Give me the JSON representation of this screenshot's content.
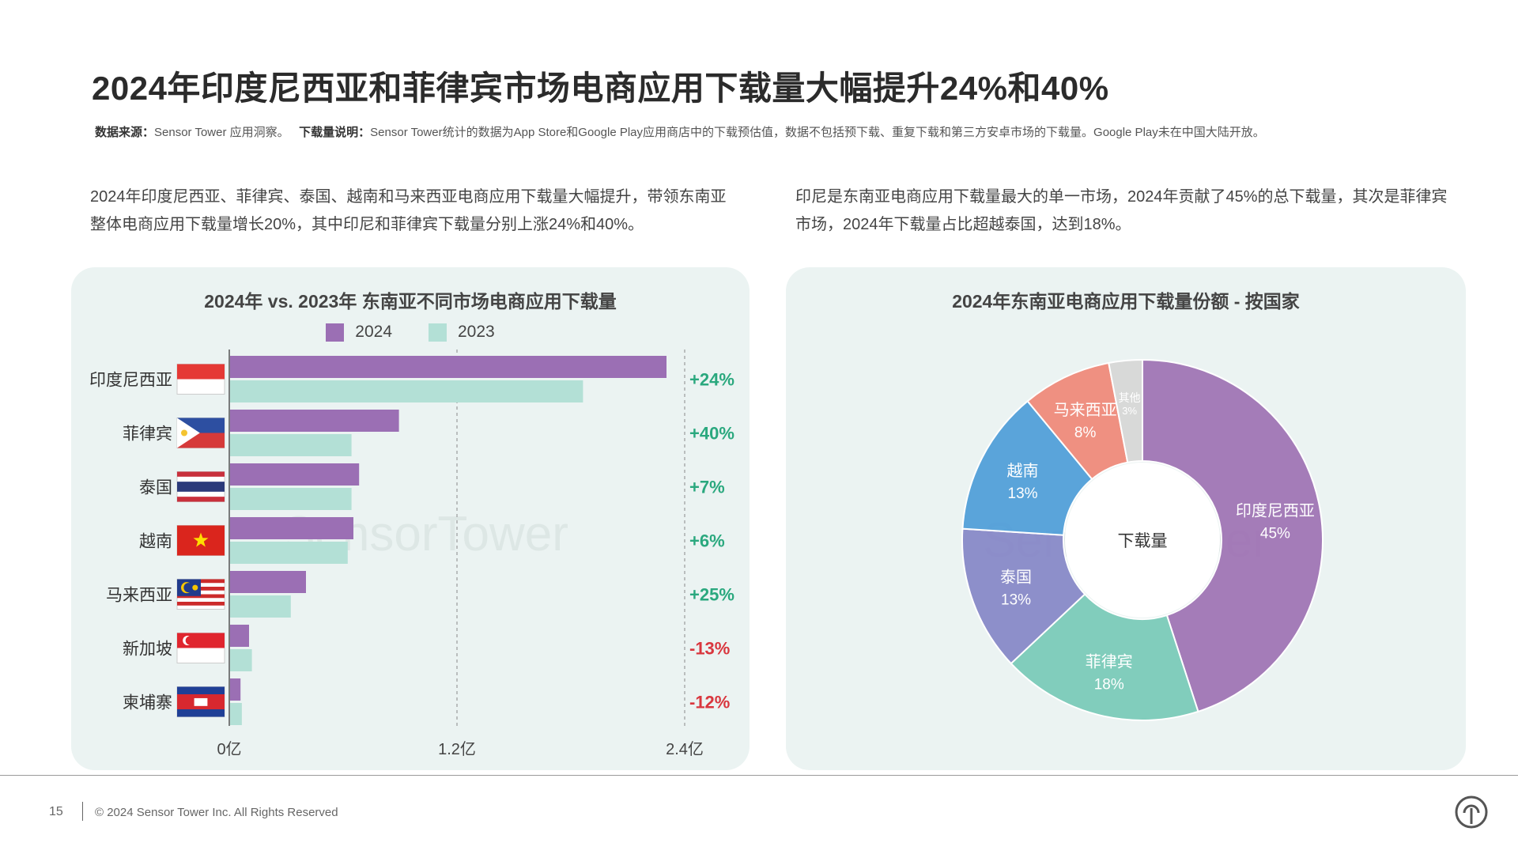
{
  "header": {
    "title": "2024年印度尼西亚和菲律宾市场电商应用下载量大幅提升24%和40%",
    "source_label": "数据来源：",
    "source_text": "Sensor Tower 应用洞察。",
    "note_label": "下载量说明：",
    "note_text": "Sensor Tower统计的数据为App Store和Google Play应用商店中的下载预估值，数据不包括预下载、重复下载和第三方安卓市场的下载量。Google Play未在中国大陆开放。"
  },
  "descriptions": {
    "left": "2024年印度尼西亚、菲律宾、泰国、越南和马来西亚电商应用下载量大幅提升，带领东南亚整体电商应用下载量增长20%，其中印尼和菲律宾下载量分别上涨24%和40%。",
    "right": "印尼是东南亚电商应用下载量最大的单一市场，2024年贡献了45%的总下载量，其次是菲律宾市场，2024年下载量占比超越泰国，达到18%。"
  },
  "watermark": "SensorTower",
  "chart_data": [
    {
      "type": "bar",
      "orientation": "horizontal",
      "title": "2024年 vs. 2023年 东南亚不同市场电商应用下载量",
      "categories": [
        "印度尼西亚",
        "菲律宾",
        "泰国",
        "越南",
        "马来西亚",
        "新加坡",
        "柬埔寨"
      ],
      "series": [
        {
          "name": "2024",
          "color": "#9b6fb4",
          "values": [
            2.3,
            0.89,
            0.68,
            0.65,
            0.4,
            0.1,
            0.055
          ]
        },
        {
          "name": "2023",
          "color": "#b3e0d6",
          "values": [
            1.86,
            0.64,
            0.64,
            0.62,
            0.32,
            0.115,
            0.062
          ]
        }
      ],
      "growth_labels": [
        "+24%",
        "+40%",
        "+7%",
        "+6%",
        "+25%",
        "-13%",
        "-12%"
      ],
      "growth_colors": {
        "positive": "#2aa87e",
        "negative": "#d9363e"
      },
      "xticks": [
        "0亿",
        "1.2亿",
        "2.4亿"
      ],
      "xtick_values": [
        0,
        1.2,
        2.4
      ],
      "xlim": [
        0,
        2.4
      ],
      "grid": true,
      "legend_position": "top"
    },
    {
      "type": "pie",
      "variant": "donut",
      "title": "2024年东南亚电商应用下载量份额 - 按国家",
      "center_label": "下载量",
      "slices": [
        {
          "label": "印度尼西亚",
          "value": 45,
          "value_label": "45%",
          "color": "#9e72b4"
        },
        {
          "label": "菲律宾",
          "value": 18,
          "value_label": "18%",
          "color": "#79c9b8"
        },
        {
          "label": "泰国",
          "value": 13,
          "value_label": "13%",
          "color": "#8587c7"
        },
        {
          "label": "越南",
          "value": 13,
          "value_label": "13%",
          "color": "#4f9dd8"
        },
        {
          "label": "马来西亚",
          "value": 8,
          "value_label": "8%",
          "color": "#ef8878"
        },
        {
          "label": "其他",
          "value": 3,
          "value_label": "3%",
          "color": "#d6d6d6"
        }
      ]
    }
  ],
  "footer": {
    "page_number": "15",
    "copyright": "© 2024 Sensor Tower Inc. All Rights Reserved"
  }
}
